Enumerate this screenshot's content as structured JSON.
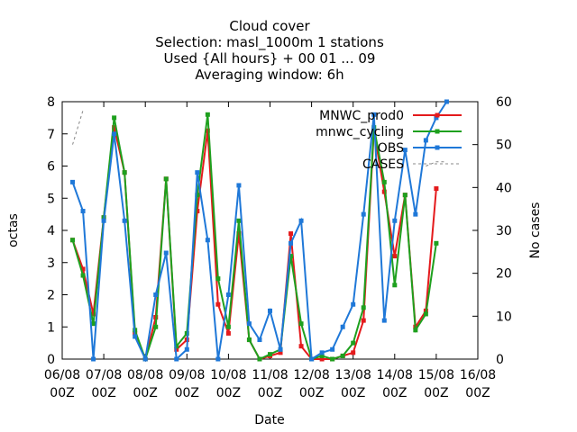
{
  "chart_data": {
    "type": "line",
    "title_lines": [
      "Cloud cover",
      "Selection: masl_1000m      1 stations",
      "Used {All hours} + 00 01 ... 09",
      "Averaging window:  6h"
    ],
    "xlabel": "Date",
    "ylabel_left": "octas",
    "ylabel_right": "No cases",
    "x_tick_labels": [
      {
        "day": "06/08",
        "hour": "00Z"
      },
      {
        "day": "07/08",
        "hour": "00Z"
      },
      {
        "day": "08/08",
        "hour": "00Z"
      },
      {
        "day": "09/08",
        "hour": "00Z"
      },
      {
        "day": "10/08",
        "hour": "00Z"
      },
      {
        "day": "11/08",
        "hour": "00Z"
      },
      {
        "day": "12/08",
        "hour": "00Z"
      },
      {
        "day": "13/08",
        "hour": "00Z"
      },
      {
        "day": "14/08",
        "hour": "00Z"
      },
      {
        "day": "15/08",
        "hour": "00Z"
      },
      {
        "day": "16/08",
        "hour": "00Z"
      }
    ],
    "xlim_days": [
      0,
      10
    ],
    "ylim_left": [
      0,
      8
    ],
    "yticks_left": [
      0,
      1,
      2,
      3,
      4,
      5,
      6,
      7,
      8
    ],
    "ylim_right": [
      0,
      60
    ],
    "yticks_right": [
      0,
      10,
      20,
      30,
      40,
      50,
      60
    ],
    "x_days": [
      0.25,
      0.5,
      0.75,
      1.0,
      1.25,
      1.5,
      1.75,
      2.0,
      2.25,
      2.5,
      2.75,
      3.0,
      3.25,
      3.5,
      3.75,
      4.0,
      4.25,
      4.5,
      4.75,
      5.0,
      5.25,
      5.5,
      5.75,
      6.0,
      6.25,
      6.5,
      6.75,
      7.0,
      7.25,
      7.5,
      7.75,
      8.0,
      8.25,
      8.5,
      8.75,
      9.0,
      9.25,
      9.5
    ],
    "legend_position": "top-right",
    "series": [
      {
        "name": "MNWC_prod0",
        "color": "#e41a1c",
        "axis": "left",
        "values": [
          3.7,
          2.8,
          1.4,
          4.4,
          7.2,
          5.8,
          0.8,
          0.0,
          1.3,
          5.6,
          0.3,
          0.6,
          4.6,
          7.1,
          1.7,
          0.8,
          3.9,
          0.6,
          0.0,
          0.1,
          0.2,
          3.9,
          0.4,
          0.0,
          0.0,
          0.0,
          0.1,
          0.2,
          1.2,
          7.1,
          5.2,
          3.2,
          5.1,
          1.0,
          1.5,
          5.3,
          null,
          null
        ]
      },
      {
        "name": "mnwc_cycling",
        "color": "#1ea01e",
        "axis": "left",
        "values": [
          3.7,
          2.6,
          1.1,
          4.4,
          7.5,
          5.8,
          0.9,
          0.0,
          1.0,
          5.6,
          0.4,
          0.8,
          5.1,
          7.6,
          2.5,
          1.0,
          4.3,
          0.6,
          0.0,
          0.15,
          0.3,
          3.2,
          1.1,
          0.0,
          0.1,
          0.0,
          0.1,
          0.5,
          1.6,
          7.2,
          5.5,
          2.3,
          5.1,
          0.9,
          1.4,
          3.6,
          null,
          null
        ]
      },
      {
        "name": "OBS",
        "color": "#1f78d8",
        "axis": "left",
        "values": [
          5.5,
          4.6,
          0.0,
          4.3,
          7.0,
          4.3,
          0.7,
          0.0,
          2.0,
          3.3,
          0.0,
          0.3,
          5.8,
          3.7,
          0.0,
          2.0,
          5.4,
          1.1,
          0.6,
          1.5,
          0.3,
          3.6,
          4.3,
          0.0,
          0.2,
          0.3,
          1.0,
          1.7,
          4.5,
          7.6,
          1.2,
          4.3,
          6.5,
          4.5,
          6.8,
          7.5,
          8.0,
          null
        ]
      },
      {
        "name": "CASES",
        "color": "#888888",
        "axis": "right",
        "dashed": true,
        "x_days": [
          0.25,
          0.5,
          8.25,
          8.5,
          8.75,
          9.0,
          9.25
        ],
        "values": [
          50,
          58,
          null,
          null,
          45,
          46,
          46
        ]
      }
    ]
  }
}
